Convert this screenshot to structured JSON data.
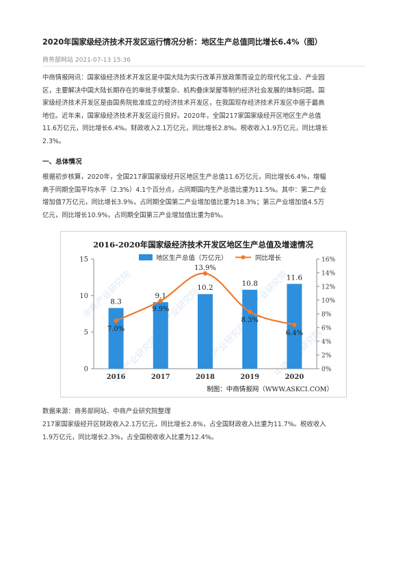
{
  "article": {
    "title": "2020年国家级经济技术开发区运行情况分析：地区生产总值同比增长6.4%（图）",
    "source_site": "商务部网站",
    "datetime": "2021-07-13 15:36",
    "intro_lines": [
      "中商情报网讯：国家级经济技术开发区是中国大陆为实行改革开放政策而设立的现代化工业、产业园",
      "区，主要解决中国大陆长期存在的审批手续繁杂、机构叠床架屋等制约经济社会发展的体制问题。国",
      "家级经济技术开发区是由国务院批准成立的经济技术开发区，在我国现存经济技术开发区中居于最高",
      "地位。近年来，国家级经济技术开发区运行良好。2020年，全国217家国家级经开区地区生产总值",
      "11.6万亿元，同比增长6.4%。财政收入2.1万亿元，同比增长2.8%。税收收入1.9万亿元，同比增长",
      "2.3%。"
    ],
    "section_heading": "一、总体情况",
    "section_lines": [
      "根据初步核算，2020年，全国217家国家级经开区地区生产总值11.6万亿元，同比增长6.4%，增幅",
      "高于同期全国平均水平（2.3%）4.1个百分点，占同期国内生产总值比重为11.5%。其中：第二产业",
      "增加值7万亿元，同比增长3.9%，占同期全国第二产业增加值比重为18.3%；第三产业增加值4.5万",
      "亿元，同比增长10.9%，占同期全国第三产业增加值比重为8%。"
    ],
    "data_source": "数据来源：商务部网站、中商产业研究院整理",
    "fiscal_lines": [
      "217家国家级经开区财政收入2.1万亿元，同比增长2.8%，占全国财政收入比重为11.7%。税收收入",
      "1.9万亿元，同比增长2.3%，占全国税收收入比重为12.4%。"
    ]
  },
  "chart_data": {
    "type": "bar",
    "title": "2016-2020年国家级经济技术开发区地区生产总值及增速情况",
    "categories": [
      "2016",
      "2017",
      "2018",
      "2019",
      "2020"
    ],
    "series": [
      {
        "name": "地区生产总值（万亿元）",
        "kind": "bar",
        "axis": "left",
        "values": [
          8.3,
          9.1,
          10.2,
          10.8,
          11.6
        ],
        "labels": [
          "8.3",
          "9.1",
          "10.2",
          "10.8",
          "11.6"
        ],
        "color": "#2e8fdc"
      },
      {
        "name": "同比增长",
        "kind": "line",
        "axis": "right",
        "values": [
          7.0,
          9.9,
          13.9,
          8.3,
          6.4
        ],
        "labels": [
          "7.0%",
          "9.9%",
          "13.9%",
          "8.3%",
          "6.4%"
        ],
        "color": "#f07a2a"
      }
    ],
    "left_axis": {
      "ylim": [
        0,
        15
      ],
      "ticks": [
        "0",
        "5",
        "10",
        "15"
      ]
    },
    "right_axis": {
      "ylim": [
        0,
        16
      ],
      "ticks": [
        "0%",
        "2%",
        "4%",
        "6%",
        "8%",
        "10%",
        "12%",
        "14%",
        "16%"
      ]
    },
    "legend_position": "top-center",
    "grid": false,
    "credit": "制图：中商情报网（WWW.ASKCI.COM）",
    "watermark": "中商产业研究院"
  }
}
